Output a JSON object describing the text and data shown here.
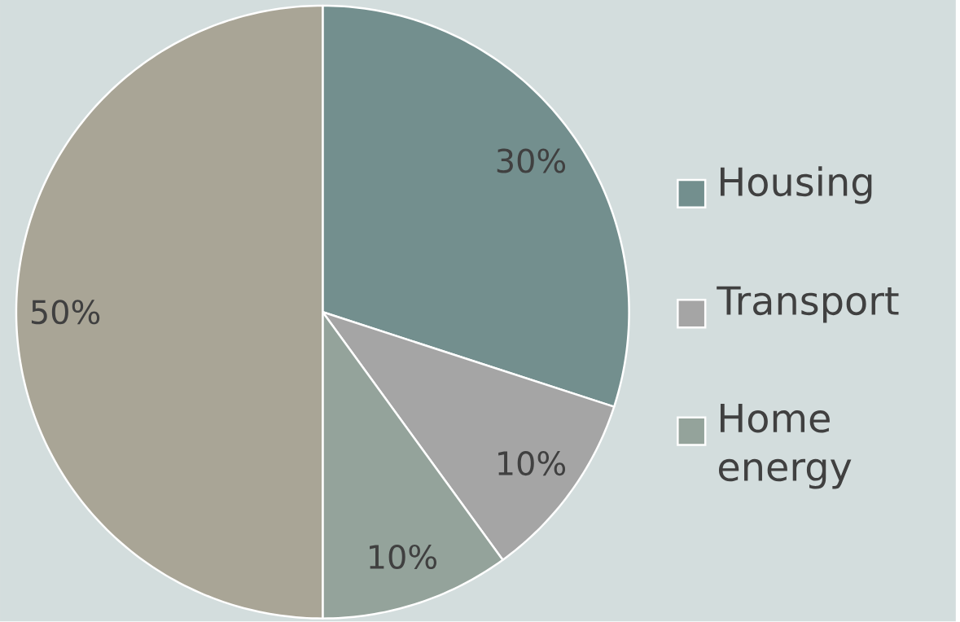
{
  "chart_data": {
    "type": "pie",
    "categories": [
      "Housing",
      "Transport",
      "Home energy",
      null
    ],
    "values": [
      30,
      10,
      10,
      50
    ],
    "colors": [
      "#738f8e",
      "#a5a5a5",
      "#94a39b",
      "#a9a596"
    ],
    "value_labels": [
      "30%",
      "10%",
      "10%",
      "50%"
    ],
    "legend": "right"
  }
}
